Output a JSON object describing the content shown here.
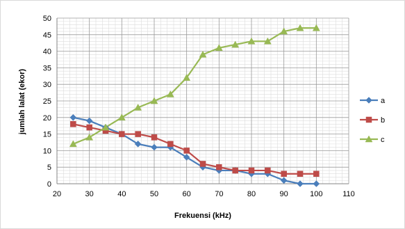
{
  "chart_data": {
    "type": "line",
    "title": "",
    "xlabel": "Frekuensi (kHz)",
    "ylabel": "jumlah lalat (ekor)",
    "xlim": [
      20,
      110
    ],
    "ylim": [
      0,
      50
    ],
    "x_ticks": [
      20,
      30,
      40,
      50,
      60,
      70,
      80,
      90,
      100,
      110
    ],
    "y_ticks": [
      0,
      5,
      10,
      15,
      20,
      25,
      30,
      35,
      40,
      45,
      50
    ],
    "grid": true,
    "legend_position": "right",
    "x": [
      25,
      30,
      35,
      40,
      45,
      50,
      55,
      60,
      65,
      70,
      75,
      80,
      85,
      90,
      95,
      100
    ],
    "series": [
      {
        "name": "a",
        "color": "#4a7ebb",
        "marker": "diamond",
        "values": [
          20,
          19,
          17,
          15,
          12,
          11,
          11,
          8,
          5,
          4,
          4,
          3,
          3,
          1,
          0,
          0
        ]
      },
      {
        "name": "b",
        "color": "#be4b48",
        "marker": "square",
        "values": [
          18,
          17,
          16,
          15,
          15,
          14,
          12,
          10,
          6,
          5,
          4,
          4,
          4,
          3,
          3,
          3
        ]
      },
      {
        "name": "c",
        "color": "#98b954",
        "marker": "triangle",
        "values": [
          12,
          14,
          17,
          20,
          23,
          25,
          27,
          32,
          39,
          41,
          42,
          43,
          43,
          46,
          47,
          47
        ]
      }
    ]
  }
}
